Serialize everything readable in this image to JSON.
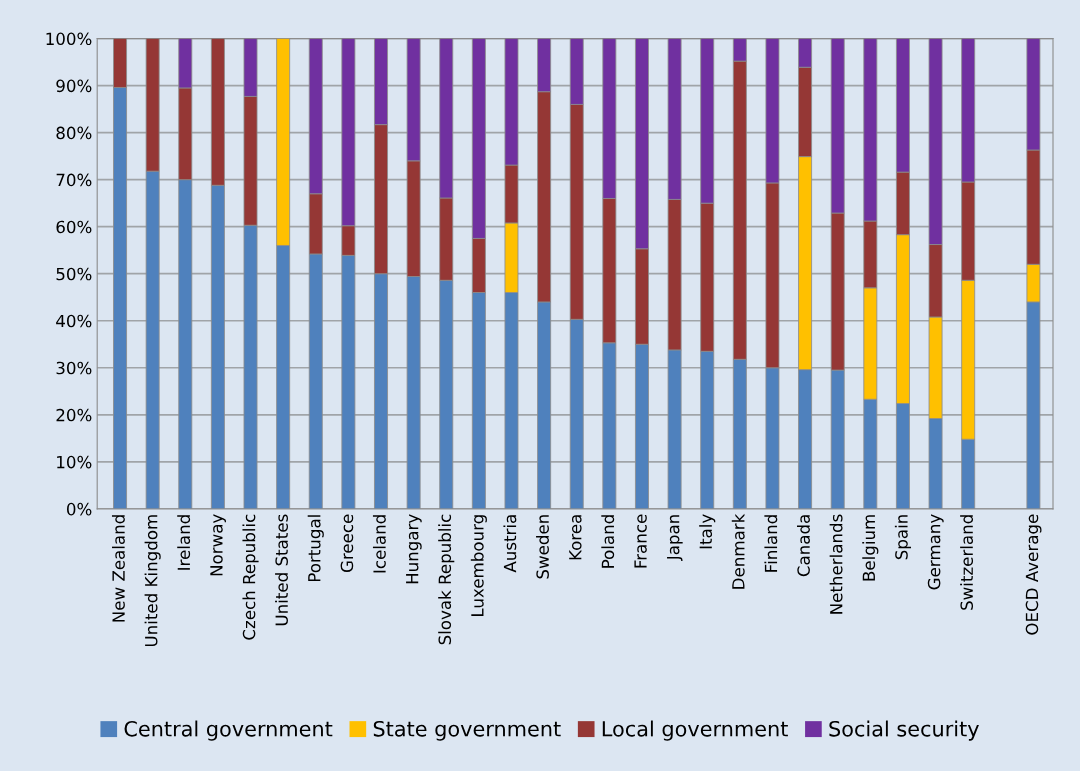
{
  "chart_data": {
    "type": "bar",
    "stacked": true,
    "categories": [
      "New Zealand",
      "United Kingdom",
      "Ireland",
      "Norway",
      "Czech Republic",
      "United States",
      "Portugal",
      "Greece",
      "Iceland",
      "Hungary",
      "Slovak Republic",
      "Luxembourg",
      "Austria",
      "Sweden",
      "Korea",
      "Poland",
      "France",
      "Japan",
      "Italy",
      "Denmark",
      "Finland",
      "Canada",
      "Netherlands",
      "Belgium",
      "Spain",
      "Germany",
      "Switzerland",
      null,
      "OECD Average"
    ],
    "series": [
      {
        "name": "Central government",
        "color": "#4f81bd",
        "values": [
          89.6,
          71.8,
          70,
          68.8,
          60.3,
          56,
          54.2,
          53.9,
          50,
          49.4,
          48.6,
          46,
          46,
          44,
          40.3,
          35.3,
          35,
          33.8,
          33.5,
          31.8,
          30,
          29.6,
          29.5,
          23.3,
          22.4,
          19.2,
          14.8,
          null,
          44
        ]
      },
      {
        "name": "State government",
        "color": "#ffc000",
        "values": [
          null,
          null,
          null,
          null,
          null,
          44,
          null,
          null,
          null,
          null,
          null,
          null,
          14.8,
          null,
          null,
          null,
          null,
          null,
          null,
          null,
          null,
          45.3,
          null,
          23.7,
          35.9,
          21.6,
          33.8,
          null,
          8
        ]
      },
      {
        "name": "Local government",
        "color": "#953735",
        "values": [
          10.4,
          28.2,
          19.5,
          31.2,
          27.4,
          null,
          12.8,
          6.3,
          31.7,
          24.6,
          17.5,
          11.5,
          12.3,
          44.7,
          45.7,
          30.7,
          20.3,
          32,
          31.5,
          63.4,
          39.3,
          19,
          33.4,
          14.2,
          13.3,
          15.4,
          20.9,
          null,
          24.3
        ]
      },
      {
        "name": "Social security",
        "color": "#7030a0",
        "values": [
          null,
          null,
          10.5,
          null,
          12.3,
          null,
          33,
          39.8,
          18.3,
          26,
          33.9,
          42.5,
          26.9,
          11.3,
          14,
          34,
          44.7,
          34.2,
          35,
          4.8,
          30.7,
          6.1,
          37.1,
          38.8,
          28.4,
          43.8,
          30.5,
          null,
          23.7
        ]
      }
    ],
    "ylim": [
      0,
      100
    ],
    "yticks": [
      {
        "value": 0,
        "label": "0%"
      },
      {
        "value": 10,
        "label": "10%"
      },
      {
        "value": 20,
        "label": "20%"
      },
      {
        "value": 30,
        "label": "30%"
      },
      {
        "value": 40,
        "label": "40%"
      },
      {
        "value": 50,
        "label": "50%"
      },
      {
        "value": 60,
        "label": "60%"
      },
      {
        "value": 70,
        "label": "70%"
      },
      {
        "value": 80,
        "label": "80%"
      },
      {
        "value": 90,
        "label": "90%"
      },
      {
        "value": 100,
        "label": "100%"
      }
    ],
    "grid": "y",
    "legend": "bottom"
  }
}
